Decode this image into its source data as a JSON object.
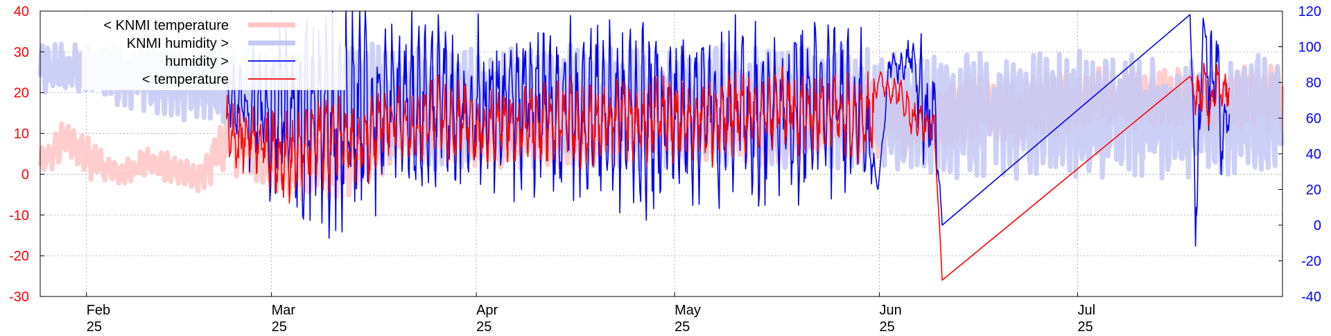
{
  "chart_data": {
    "type": "line",
    "title": "",
    "xlabel": "",
    "ylabel": "",
    "y2label": "",
    "grid": true,
    "legend_position": "top-left",
    "ylim": [
      -30,
      40
    ],
    "y2lim": [
      -40,
      120
    ],
    "xlim_days": [
      0,
      188
    ],
    "y_ticks": [
      "-30",
      "-20",
      "-10",
      "0",
      "10",
      "20",
      "30",
      "40"
    ],
    "y2_ticks": [
      "-40",
      "-20",
      "0",
      "20",
      "40",
      "60",
      "80",
      "100",
      "120"
    ],
    "x_ticks": [
      {
        "label": "Feb",
        "sub": "25",
        "day": 7
      },
      {
        "label": "Mar",
        "sub": "25",
        "day": 35
      },
      {
        "label": "Apr",
        "sub": "25",
        "day": 66
      },
      {
        "label": "May",
        "sub": "25",
        "day": 96
      },
      {
        "label": "Jun",
        "sub": "25",
        "day": 127
      },
      {
        "label": "Jul",
        "sub": "25",
        "day": 157
      }
    ],
    "colors": {
      "left_axis": "#ff0000",
      "right_axis": "#0000ff",
      "grid": "#a0a0a0",
      "knmi_temperature": "#ffc4c4",
      "knmi_humidity": "#c4c8f4",
      "humidity": "#0000ee",
      "temperature": "#ff0000"
    },
    "series": [
      {
        "name": "< KNMI temperature",
        "axis": "left",
        "style": "knmi_temperature",
        "x": [
          0,
          4,
          8,
          12,
          16,
          20,
          24,
          28,
          32,
          36,
          40,
          44,
          48,
          52,
          56,
          60,
          64,
          68,
          72,
          76,
          80,
          84,
          88,
          92,
          96,
          100,
          104,
          108,
          112,
          116,
          120,
          124,
          128,
          132,
          136,
          140,
          144,
          148,
          152,
          156,
          160,
          164,
          168,
          172,
          176,
          180,
          184,
          188
        ],
        "values": [
          2,
          9,
          3,
          0,
          3,
          1,
          -1,
          8,
          7,
          4,
          2,
          3,
          6,
          10,
          11,
          12,
          12,
          11,
          12,
          12,
          11,
          12,
          13,
          13,
          14,
          14,
          14,
          13,
          13,
          14,
          14,
          14,
          13,
          14,
          15,
          16,
          16,
          15,
          17,
          18,
          19,
          18,
          19,
          19,
          18,
          18,
          19,
          19
        ],
        "range": [
          4,
          5,
          5,
          3,
          4,
          4,
          4,
          8,
          9,
          9,
          10,
          10,
          11,
          10,
          10,
          10,
          10,
          10,
          10,
          10,
          11,
          10,
          11,
          11,
          11,
          12,
          11,
          11,
          11,
          11,
          10,
          10,
          9,
          9,
          9,
          9,
          8,
          8,
          8,
          8,
          8,
          8,
          8,
          8,
          8,
          8,
          8,
          8
        ]
      },
      {
        "name": "KNMI humidity >",
        "axis": "right",
        "style": "knmi_humidity",
        "x": [
          0,
          4,
          8,
          12,
          16,
          20,
          24,
          28,
          32,
          36,
          40,
          44,
          48,
          52,
          56,
          60,
          64,
          68,
          72,
          76,
          80,
          84,
          88,
          92,
          96,
          100,
          104,
          108,
          112,
          116,
          120,
          124,
          128,
          132,
          136,
          140,
          144,
          148,
          152,
          156,
          160,
          164,
          168,
          172,
          176,
          180,
          184,
          188
        ],
        "values": [
          88,
          88,
          86,
          84,
          82,
          80,
          78,
          76,
          74,
          72,
          70,
          68,
          66,
          66,
          66,
          66,
          66,
          66,
          66,
          66,
          66,
          66,
          66,
          66,
          66,
          66,
          66,
          66,
          66,
          66,
          66,
          66,
          64,
          62,
          62,
          62,
          62,
          62,
          62,
          62,
          62,
          62,
          62,
          62,
          62,
          62,
          62,
          62
        ],
        "range": [
          14,
          14,
          16,
          18,
          20,
          22,
          24,
          26,
          28,
          30,
          32,
          34,
          36,
          36,
          36,
          36,
          36,
          36,
          36,
          36,
          36,
          36,
          36,
          36,
          36,
          36,
          36,
          36,
          36,
          36,
          36,
          36,
          36,
          36,
          36,
          36,
          36,
          36,
          36,
          36,
          36,
          36,
          36,
          36,
          36,
          36,
          36,
          36
        ]
      },
      {
        "name": "humidity >",
        "axis": "right",
        "style": "humidity",
        "x": [
          28.2,
          32,
          36,
          40,
          44,
          48,
          52,
          56,
          60,
          64,
          68,
          72,
          76,
          80,
          84,
          88,
          92,
          96,
          100,
          104,
          108,
          112,
          116,
          120,
          124,
          126.8,
          128.5,
          130.5,
          132,
          134,
          135.3,
          136.5,
          174,
          175,
          176,
          177,
          178,
          179,
          180
        ],
        "values": [
          70,
          65,
          62,
          58,
          60,
          63,
          65,
          68,
          68,
          65,
          66,
          65,
          67,
          63,
          65,
          62,
          60,
          63,
          65,
          62,
          63,
          64,
          65,
          67,
          70,
          20,
          90,
          88,
          95,
          60,
          64,
          0,
          118,
          0,
          116,
          75,
          95,
          40,
          80
        ],
        "range": [
          15,
          40,
          60,
          70,
          70,
          68,
          60,
          52,
          52,
          55,
          54,
          55,
          53,
          57,
          55,
          58,
          60,
          57,
          55,
          58,
          57,
          56,
          55,
          53,
          50,
          0,
          10,
          12,
          15,
          50,
          40,
          0,
          0,
          50,
          0,
          40,
          20,
          35,
          30
        ]
      },
      {
        "name": "< temperature",
        "axis": "left",
        "style": "temperature",
        "x": [
          28.2,
          30,
          32,
          34,
          36,
          38,
          40,
          42,
          44,
          46,
          48,
          50,
          52,
          54,
          56,
          58,
          60,
          62,
          64,
          66,
          68,
          70,
          72,
          74,
          76,
          78,
          80,
          82,
          84,
          86,
          88,
          90,
          92,
          94,
          96,
          98,
          100,
          102,
          104,
          106,
          108,
          110,
          112,
          114,
          116,
          118,
          120,
          122,
          124,
          126,
          126.8,
          128,
          130,
          132,
          134,
          135.3,
          136.5,
          174,
          175,
          176,
          177,
          178,
          179,
          180
        ],
        "values": [
          12,
          8,
          10,
          7,
          5,
          4,
          6,
          9,
          8,
          11,
          6,
          9,
          12,
          14,
          10,
          12,
          15,
          11,
          14,
          10,
          12,
          13,
          11,
          14,
          12,
          13,
          15,
          10,
          13,
          12,
          14,
          13,
          12,
          15,
          14,
          13,
          15,
          12,
          14,
          16,
          13,
          15,
          17,
          16,
          14,
          15,
          16,
          15,
          14,
          15,
          24,
          21,
          20,
          14,
          12,
          12,
          -26,
          24,
          18,
          22,
          16,
          24,
          19,
          22
        ],
        "range": [
          8,
          9,
          9,
          10,
          11,
          12,
          12,
          13,
          13,
          12,
          11,
          12,
          10,
          9,
          10,
          11,
          10,
          11,
          10,
          9,
          10,
          9,
          10,
          10,
          11,
          11,
          11,
          12,
          11,
          11,
          11,
          11,
          12,
          11,
          12,
          11,
          11,
          12,
          11,
          11,
          12,
          11,
          11,
          11,
          12,
          11,
          11,
          11,
          12,
          11,
          2,
          3,
          4,
          5,
          5,
          3,
          0,
          0,
          6,
          8,
          6,
          7,
          5,
          6
        ]
      }
    ]
  }
}
